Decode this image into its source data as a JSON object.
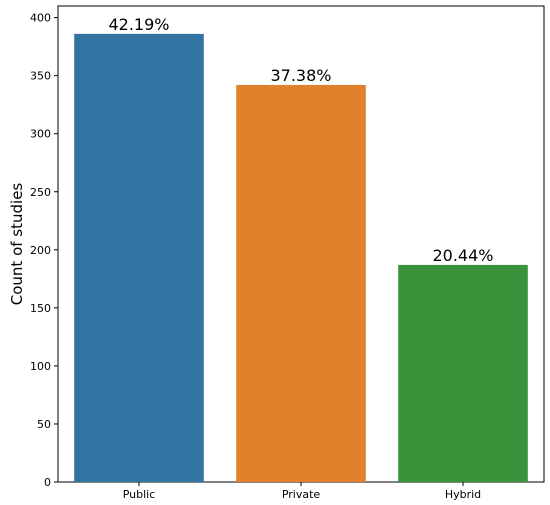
{
  "chart_data": {
    "type": "bar",
    "title": "",
    "xlabel": "",
    "ylabel": "Count of studies",
    "categories": [
      "Public",
      "Private",
      "Hybrid"
    ],
    "values": [
      386,
      342,
      187
    ],
    "data_labels": [
      "42.19%",
      "37.38%",
      "20.44%"
    ],
    "colors": [
      "#3274a1",
      "#e1812c",
      "#3a923a"
    ],
    "ylim": [
      0,
      410
    ],
    "yticks": [
      0,
      50,
      100,
      150,
      200,
      250,
      300,
      350,
      400
    ],
    "grid": false,
    "legend": "none"
  }
}
